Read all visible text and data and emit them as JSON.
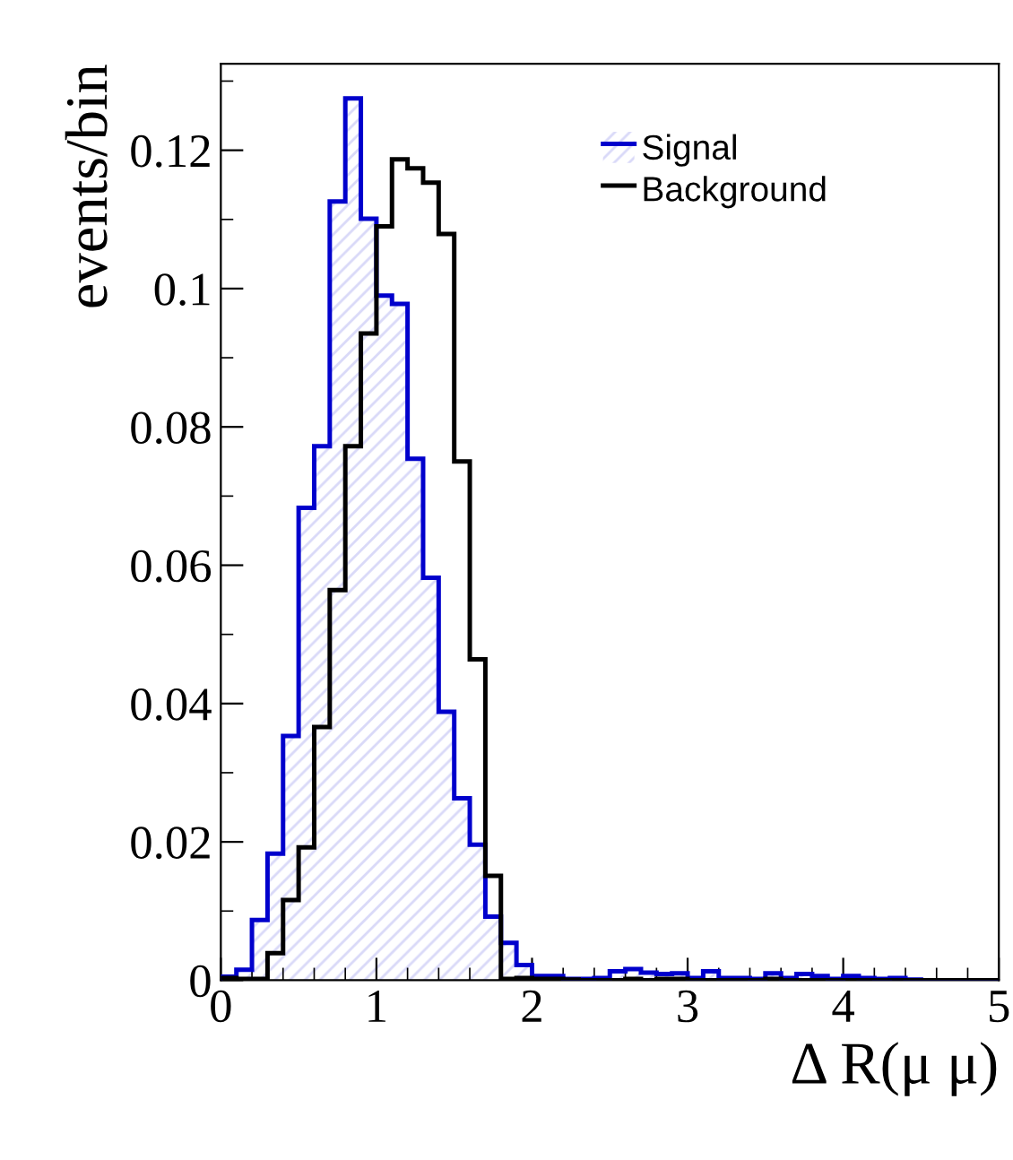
{
  "chart_data": {
    "type": "histogram",
    "xlabel": "Δ R(μ μ)",
    "ylabel": "events/bin",
    "bins": [
      0,
      0.1,
      0.2,
      0.3,
      0.4,
      0.5,
      0.6,
      0.7,
      0.8,
      0.9,
      1.0,
      1.1,
      1.2,
      1.3,
      1.4,
      1.5,
      1.6,
      1.7,
      1.8,
      1.9,
      2.0,
      2.1,
      2.2,
      2.3,
      2.4,
      2.5,
      2.6,
      2.7,
      2.8,
      2.9,
      3.0,
      3.1,
      3.2,
      3.3,
      3.4,
      3.5,
      3.6,
      3.7,
      3.8,
      3.9,
      4.0,
      4.1,
      4.2,
      4.3,
      4.4,
      4.5,
      4.6,
      4.7,
      4.8,
      4.9,
      5.0
    ],
    "series": [
      {
        "name": "Signal",
        "color": "#0000cc",
        "values": [
          0.0005,
          0.0015,
          0.0087,
          0.0183,
          0.0353,
          0.0683,
          0.0772,
          0.1126,
          0.1275,
          0.1101,
          0.099,
          0.0978,
          0.0754,
          0.0582,
          0.0388,
          0.0263,
          0.0196,
          0.0092,
          0.0054,
          0.0022,
          0.0006,
          0.0006,
          0.0002,
          0.0002,
          0.0003,
          0.0013,
          0.0016,
          0.0011,
          0.0009,
          0.001,
          0.0003,
          0.0013,
          0.0003,
          0.0003,
          0.0002,
          0.001,
          0.0003,
          0.0009,
          0.0006,
          0.0002,
          0.0006,
          0.0003,
          0.0002,
          0.0003,
          0.0001,
          0,
          0,
          0,
          0,
          0
        ]
      },
      {
        "name": "Background",
        "color": "#000000",
        "values": [
          0.0003,
          0.0002,
          0.0002,
          0.0039,
          0.0116,
          0.0192,
          0.0366,
          0.0564,
          0.0772,
          0.0935,
          0.109,
          0.1187,
          0.1174,
          0.1153,
          0.1079,
          0.075,
          0.0464,
          0.0151,
          0.0002,
          0.0003,
          0.0002,
          0.0002,
          0.0001,
          0,
          0,
          0,
          0.0002,
          0,
          0.0002,
          0.0002,
          0,
          0,
          0,
          0,
          0,
          0.0002,
          0,
          0,
          0,
          0,
          0,
          0,
          0,
          0,
          0,
          0,
          0,
          0,
          0,
          0
        ]
      }
    ],
    "xlim": [
      0,
      5
    ],
    "ylim": [
      0,
      0.1325
    ],
    "xticks": [
      0,
      1,
      2,
      3,
      4,
      5
    ],
    "yticks": [
      0,
      0.02,
      0.04,
      0.06,
      0.08,
      0.1,
      0.12
    ],
    "legend": "top right",
    "grid": false
  }
}
